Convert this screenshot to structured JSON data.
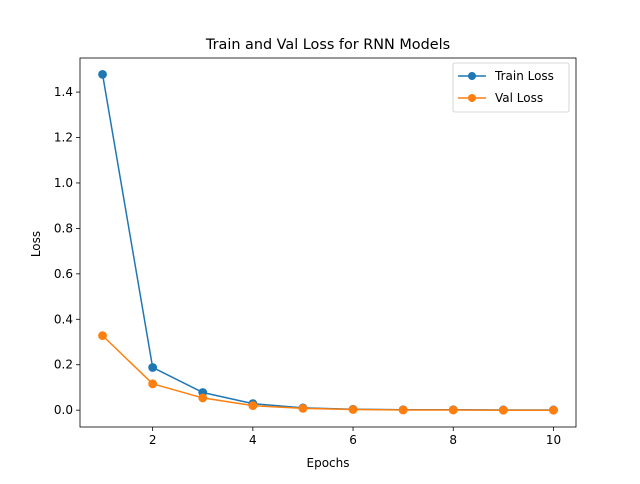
{
  "chart_data": {
    "type": "line",
    "title": "Train and Val Loss for RNN Models",
    "xlabel": "Epochs",
    "ylabel": "Loss",
    "x": [
      1,
      2,
      3,
      4,
      5,
      6,
      7,
      8,
      9,
      10
    ],
    "xlim": [
      0.55,
      10.45
    ],
    "ylim": [
      -0.074,
      1.55
    ],
    "xticks": [
      2,
      4,
      6,
      8,
      10
    ],
    "xtick_labels": [
      "2",
      "4",
      "6",
      "8",
      "10"
    ],
    "yticks": [
      0.0,
      0.2,
      0.4,
      0.6,
      0.8,
      1.0,
      1.2,
      1.4
    ],
    "ytick_labels": [
      "0.0",
      "0.2",
      "0.4",
      "0.6",
      "0.8",
      "1.0",
      "1.2",
      "1.4"
    ],
    "grid": false,
    "legend_position": "upper right",
    "series": [
      {
        "name": "Train Loss",
        "color": "#1f77b4",
        "marker": "circle",
        "values": [
          1.478,
          0.188,
          0.078,
          0.029,
          0.01,
          0.004,
          0.002,
          0.002,
          0.001,
          0.001
        ]
      },
      {
        "name": "Val Loss",
        "color": "#ff7f0e",
        "marker": "circle",
        "values": [
          0.328,
          0.116,
          0.054,
          0.02,
          0.008,
          0.003,
          0.001,
          0.001,
          0.0,
          0.0
        ]
      }
    ]
  }
}
